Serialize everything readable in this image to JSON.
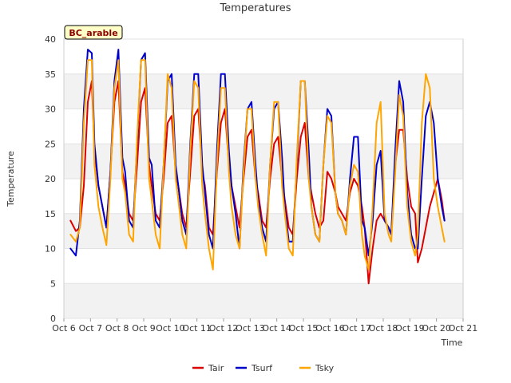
{
  "chart_data": {
    "type": "line",
    "title": "Temperatures",
    "xlabel": "Time",
    "ylabel": "Temperature",
    "badge": "BC_arable",
    "xlim": [
      6,
      21
    ],
    "ylim": [
      0,
      40
    ],
    "x_ticks": [
      6,
      7,
      8,
      9,
      10,
      11,
      12,
      13,
      14,
      15,
      16,
      17,
      18,
      19,
      20,
      21
    ],
    "x_tick_labels": [
      "Oct 6",
      "Oct 7",
      "Oct 8",
      "Oct 9",
      "Oct 10",
      "Oct 11",
      "Oct 12",
      "Oct 13",
      "Oct 14",
      "Oct 15",
      "Oct 16",
      "Oct 17",
      "Oct 18",
      "Oct 19",
      "Oct 20",
      "Oct 21"
    ],
    "y_ticks": [
      0,
      5,
      10,
      15,
      20,
      25,
      30,
      35,
      40
    ],
    "grid": "horizontal bands",
    "legend_position": "bottom",
    "series": [
      {
        "name": "Tair",
        "color": "#dd0000",
        "x": [
          6.25,
          6.45,
          6.6,
          6.75,
          6.9,
          7.05,
          7.15,
          7.3,
          7.45,
          7.6,
          7.75,
          7.9,
          8.05,
          8.2,
          8.3,
          8.45,
          8.6,
          8.75,
          8.9,
          9.05,
          9.2,
          9.3,
          9.45,
          9.6,
          9.75,
          9.9,
          10.05,
          10.2,
          10.3,
          10.45,
          10.6,
          10.75,
          10.9,
          11.05,
          11.2,
          11.3,
          11.45,
          11.6,
          11.75,
          11.9,
          12.05,
          12.2,
          12.3,
          12.45,
          12.6,
          12.75,
          12.9,
          13.05,
          13.2,
          13.3,
          13.45,
          13.6,
          13.75,
          13.9,
          14.05,
          14.2,
          14.3,
          14.45,
          14.6,
          14.75,
          14.9,
          15.05,
          15.2,
          15.3,
          15.45,
          15.6,
          15.75,
          15.9,
          16.05,
          16.2,
          16.3,
          16.45,
          16.6,
          16.75,
          16.9,
          17.05,
          17.2,
          17.3,
          17.45,
          17.6,
          17.75,
          17.9,
          18.05,
          18.2,
          18.3,
          18.45,
          18.6,
          18.75,
          18.9,
          19.05,
          19.2,
          19.3,
          19.45,
          19.6,
          19.75,
          19.9,
          20.05,
          20.2,
          20.3
        ],
        "y": [
          14,
          12.5,
          13,
          19,
          31,
          34,
          24,
          19,
          16,
          13,
          21,
          31,
          34,
          21,
          19,
          15,
          14,
          22,
          31,
          33,
          22,
          19,
          15,
          14,
          20,
          28,
          29,
          21,
          19,
          15,
          13,
          21,
          29,
          30,
          21,
          19,
          13,
          12,
          21,
          28,
          30,
          22,
          19,
          16,
          13,
          20,
          26,
          27,
          20,
          18,
          14,
          13,
          20,
          25,
          26,
          20,
          17,
          13,
          12,
          20,
          26,
          28,
          20,
          18,
          15,
          13,
          14,
          21,
          20,
          18,
          16,
          15,
          14,
          18,
          20,
          19,
          16,
          13,
          5,
          10,
          14,
          15,
          14,
          13,
          12,
          22,
          27,
          27,
          20,
          16,
          15,
          8,
          10,
          13,
          16,
          18,
          20,
          17,
          14
        ]
      },
      {
        "name": "Tsurf",
        "color": "#0000cc",
        "x": [
          6.25,
          6.45,
          6.6,
          6.75,
          6.9,
          7.05,
          7.15,
          7.3,
          7.45,
          7.6,
          7.75,
          7.9,
          8.05,
          8.2,
          8.3,
          8.45,
          8.6,
          8.75,
          8.9,
          9.05,
          9.2,
          9.3,
          9.45,
          9.6,
          9.75,
          9.9,
          10.05,
          10.2,
          10.3,
          10.45,
          10.6,
          10.75,
          10.9,
          11.05,
          11.2,
          11.3,
          11.45,
          11.6,
          11.75,
          11.9,
          12.05,
          12.2,
          12.3,
          12.45,
          12.6,
          12.75,
          12.9,
          13.05,
          13.2,
          13.3,
          13.45,
          13.6,
          13.75,
          13.9,
          14.05,
          14.2,
          14.3,
          14.45,
          14.6,
          14.75,
          14.9,
          15.05,
          15.2,
          15.3,
          15.45,
          15.6,
          15.75,
          15.9,
          16.05,
          16.2,
          16.3,
          16.45,
          16.6,
          16.75,
          16.9,
          17.05,
          17.2,
          17.3,
          17.45,
          17.6,
          17.75,
          17.9,
          18.05,
          18.2,
          18.3,
          18.45,
          18.6,
          18.75,
          18.9,
          19.05,
          19.2,
          19.3,
          19.45,
          19.6,
          19.75,
          19.9,
          20.05,
          20.2,
          20.3
        ],
        "y": [
          10,
          9,
          14,
          30,
          38.5,
          38,
          25,
          19,
          16,
          13,
          21,
          34,
          38.5,
          23,
          21,
          14,
          13,
          25,
          37,
          38,
          23,
          22,
          14,
          13,
          22,
          34,
          35,
          22,
          19,
          14,
          12,
          25,
          35,
          35,
          22,
          18,
          12,
          10,
          24,
          35,
          35,
          24,
          19,
          15,
          10,
          22,
          30,
          31,
          22,
          17,
          13,
          11,
          22,
          30,
          31,
          23,
          16,
          11,
          11,
          22,
          34,
          34,
          24,
          16,
          12,
          11,
          22,
          30,
          29,
          18,
          15,
          14,
          12,
          20,
          26,
          26,
          14,
          13,
          9,
          14,
          22,
          24,
          14,
          13,
          12,
          24,
          34,
          31,
          18,
          12,
          10,
          10,
          20,
          29,
          31,
          28,
          20,
          16,
          14
        ]
      },
      {
        "name": "Tsky",
        "color": "#ffa500",
        "x": [
          6.25,
          6.45,
          6.6,
          6.75,
          6.9,
          7.05,
          7.15,
          7.3,
          7.45,
          7.6,
          7.75,
          7.9,
          8.05,
          8.2,
          8.3,
          8.45,
          8.6,
          8.75,
          8.9,
          9.05,
          9.2,
          9.3,
          9.45,
          9.6,
          9.75,
          9.9,
          10.05,
          10.2,
          10.3,
          10.45,
          10.6,
          10.75,
          10.9,
          11.05,
          11.2,
          11.3,
          11.45,
          11.6,
          11.75,
          11.9,
          12.05,
          12.2,
          12.3,
          12.45,
          12.6,
          12.75,
          12.9,
          13.05,
          13.2,
          13.3,
          13.45,
          13.6,
          13.75,
          13.9,
          14.05,
          14.2,
          14.3,
          14.45,
          14.6,
          14.75,
          14.9,
          15.05,
          15.2,
          15.3,
          15.45,
          15.6,
          15.75,
          15.9,
          16.05,
          16.2,
          16.3,
          16.45,
          16.6,
          16.75,
          16.9,
          17.05,
          17.2,
          17.3,
          17.45,
          17.6,
          17.75,
          17.9,
          18.05,
          18.2,
          18.3,
          18.45,
          18.6,
          18.75,
          18.9,
          19.05,
          19.2,
          19.3,
          19.45,
          19.6,
          19.75,
          19.9,
          20.05,
          20.2,
          20.3
        ],
        "y": [
          12,
          11,
          13,
          28,
          37,
          37,
          22,
          16,
          13,
          10.5,
          20,
          33,
          37,
          20,
          18,
          12,
          11,
          26,
          37,
          37,
          20,
          17,
          12,
          10,
          22,
          35,
          33,
          20,
          17,
          12,
          10,
          24,
          34,
          33,
          19,
          15,
          10,
          7,
          22,
          33,
          33,
          21,
          16,
          12,
          10,
          21,
          30,
          30,
          20,
          16,
          12,
          9,
          22,
          31,
          31,
          19,
          15,
          10,
          9,
          23,
          34,
          34,
          20,
          16,
          12,
          11,
          22,
          29,
          28,
          18,
          15,
          14,
          12,
          19,
          22,
          21,
          12,
          9,
          7,
          16,
          28,
          31,
          15,
          12,
          11,
          21,
          32,
          29,
          16,
          11,
          9,
          12,
          28,
          35,
          33,
          20,
          16,
          13,
          11
        ]
      }
    ]
  }
}
